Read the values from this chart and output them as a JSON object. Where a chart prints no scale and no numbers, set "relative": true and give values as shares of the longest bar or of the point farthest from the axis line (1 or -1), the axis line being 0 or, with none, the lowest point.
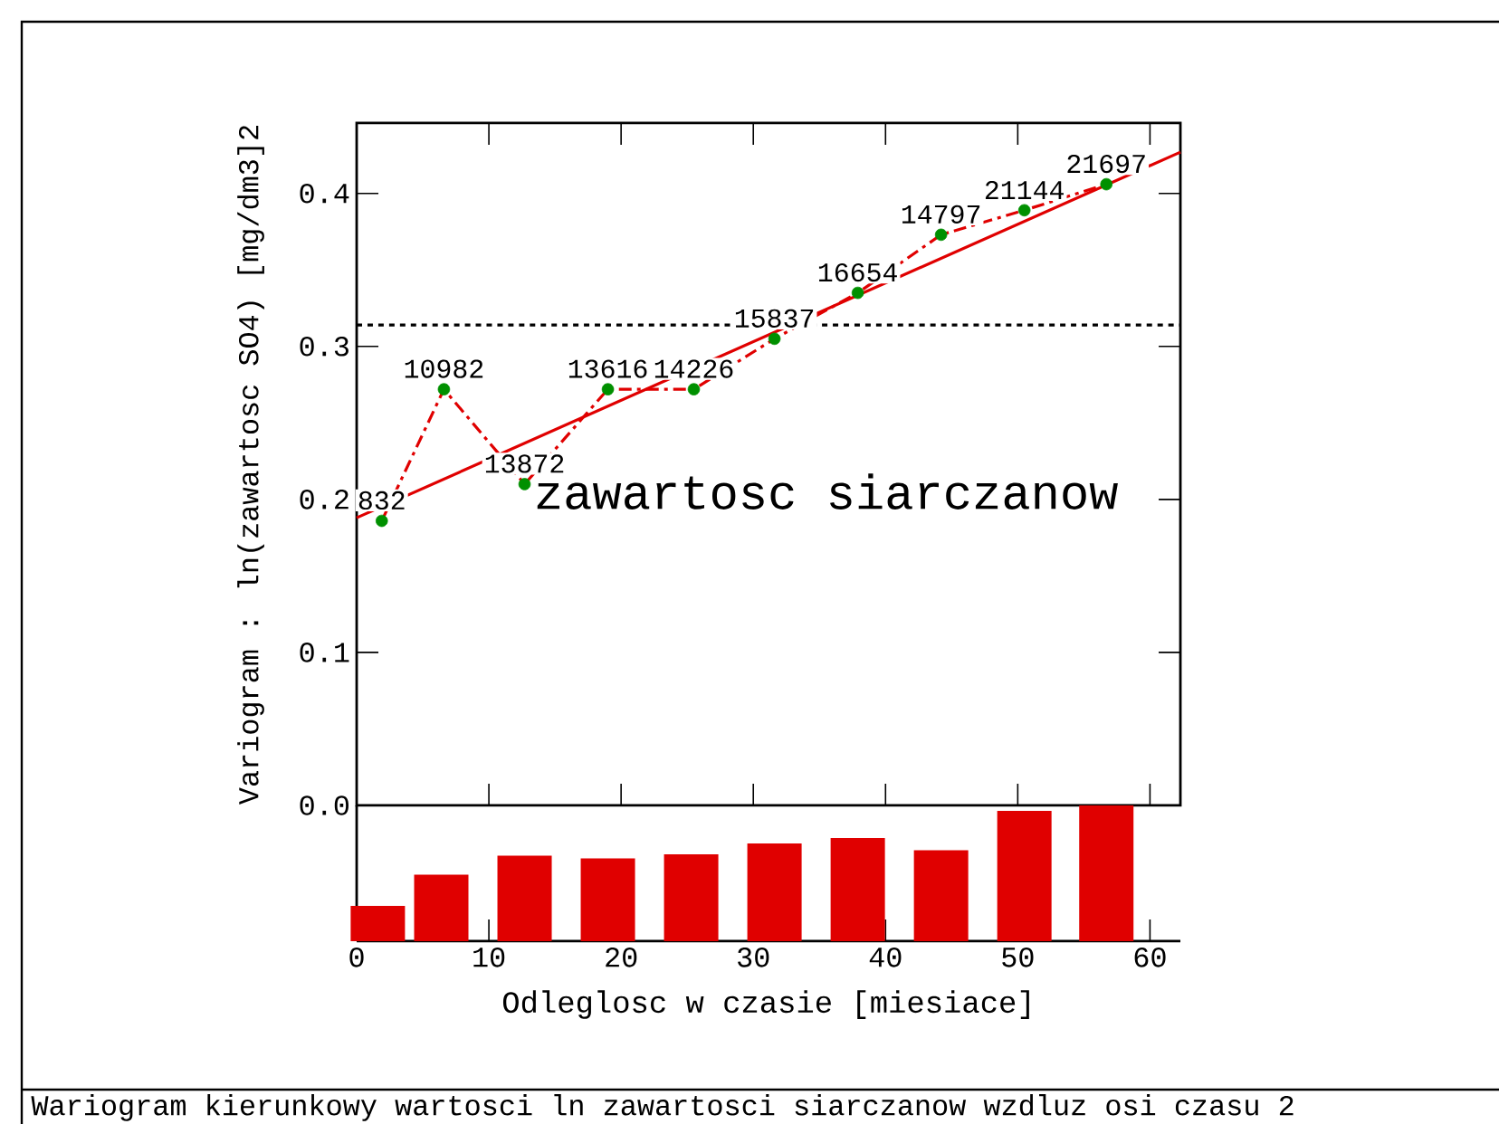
{
  "chart_data": [
    {
      "type": "line",
      "title": "zawartosc siarczanow",
      "ylabel": "Variogram : ln(zawartosc SO4)  [mg/dm3]2",
      "xlim": [
        0,
        62.3
      ],
      "ylim": [
        0,
        0.446
      ],
      "tick_labels": "y",
      "yticks": [
        {
          "value": 0,
          "label": "0.0"
        },
        {
          "value": 0.1,
          "label": "0.1"
        },
        {
          "value": 0.2,
          "label": "0.2"
        },
        {
          "value": 0.3,
          "label": "0.3"
        },
        {
          "value": 0.4,
          "label": "0.4"
        }
      ],
      "xticks": [
        {
          "value": 0,
          "label": null
        },
        {
          "value": 10,
          "label": null
        },
        {
          "value": 20,
          "label": null
        },
        {
          "value": 30,
          "label": null
        },
        {
          "value": 40,
          "label": null
        },
        {
          "value": 50,
          "label": null
        },
        {
          "value": 60,
          "label": null
        }
      ],
      "series": [
        {
          "type": "line",
          "color": "#e00000",
          "line_style": "dashdot",
          "marker": "none",
          "x": [
            1.9,
            6.6,
            12.7,
            19.0,
            25.5,
            31.6,
            37.9,
            44.2,
            50.5,
            56.7
          ],
          "values": [
            0.186,
            0.272,
            0.21,
            0.272,
            0.272,
            0.305,
            0.335,
            0.373,
            0.389,
            0.406
          ]
        },
        {
          "type": "scatter",
          "color": "#009000",
          "marker": "circle",
          "x": [
            1.9,
            6.6,
            12.7,
            19.0,
            25.5,
            31.6,
            37.9,
            44.2,
            50.5,
            56.7
          ],
          "values": [
            0.186,
            0.272,
            0.21,
            0.272,
            0.272,
            0.305,
            0.335,
            0.373,
            0.389,
            0.406
          ]
        },
        {
          "type": "line",
          "color": "#e00000",
          "line_style": "solid",
          "marker": "none",
          "x": [
            0,
            62.3
          ],
          "values": [
            0.188,
            0.427
          ]
        }
      ],
      "ref_lines": [
        {
          "axis": "y",
          "value": 0.314,
          "color": "#000000",
          "line_style": "dashed"
        }
      ],
      "annotations": [
        {
          "text": "832",
          "x": 1.9,
          "y": 0.186
        },
        {
          "text": "10982",
          "x": 6.6,
          "y": 0.272
        },
        {
          "text": "13872",
          "x": 12.7,
          "y": 0.21
        },
        {
          "text": "13616",
          "x": 19.0,
          "y": 0.272
        },
        {
          "text": "14226",
          "x": 25.5,
          "y": 0.272
        },
        {
          "text": "15837",
          "x": 31.6,
          "y": 0.305
        },
        {
          "text": "16654",
          "x": 37.9,
          "y": 0.335
        },
        {
          "text": "14797",
          "x": 44.2,
          "y": 0.373
        },
        {
          "text": "21144",
          "x": 50.5,
          "y": 0.389
        },
        {
          "text": "21697",
          "x": 56.7,
          "y": 0.406
        },
        "Wariogram kierunkowy wartosci ln zawartosci siarczanow wzdluz osi czasu 2"
      ]
    },
    {
      "type": "bar",
      "relative": true,
      "xlabel": "Odleglosc w czasie [miesiace]",
      "color": "#e00000",
      "xlim": [
        0,
        62.3
      ],
      "xticks": [
        0,
        10,
        20,
        30,
        40,
        50,
        60
      ],
      "tick_labels": "x",
      "x": [
        1.6,
        6.4,
        12.7,
        19.0,
        25.3,
        31.6,
        37.9,
        44.2,
        50.5,
        56.7
      ],
      "values": [
        0.26,
        0.49,
        0.63,
        0.61,
        0.64,
        0.72,
        0.76,
        0.67,
        0.96,
        1
      ]
    }
  ]
}
